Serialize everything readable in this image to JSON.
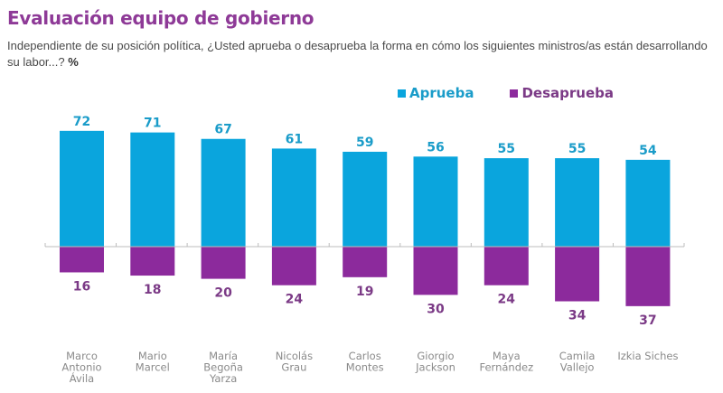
{
  "header": {
    "title": "Evaluación equipo de gobierno",
    "subtitle": "Independiente de su posición política, ¿Usted aprueba o desaprueba la forma en cómo los siguientes ministros/as están desarrollando su labor...?",
    "subtitle_unit": "%"
  },
  "colors": {
    "aprueba": "#0aa5dd",
    "desaprueba": "#8c2a9c",
    "aprueba_label": "#1a9cc9",
    "desaprueba_label": "#7b3a86",
    "title": "#8e3a97"
  },
  "chart_data": {
    "type": "bar",
    "title": "Evaluación equipo de gobierno",
    "xlabel": "",
    "ylabel": "%",
    "categories": [
      [
        "Marco",
        "Antonio",
        "Ávila"
      ],
      [
        "Mario",
        "Marcel"
      ],
      [
        "María",
        "Begoña",
        "Yarza"
      ],
      [
        "Nicolás",
        "Grau"
      ],
      [
        "Carlos",
        "Montes"
      ],
      [
        "Giorgio",
        "Jackson"
      ],
      [
        "Maya",
        "Fernández"
      ],
      [
        "Camila",
        "Vallejo"
      ],
      [
        "Izkia Siches"
      ]
    ],
    "series": [
      {
        "name": "Aprueba",
        "direction": "up",
        "values": [
          72,
          71,
          67,
          61,
          59,
          56,
          55,
          55,
          54
        ]
      },
      {
        "name": "Desaprueba",
        "direction": "down",
        "values": [
          16,
          18,
          20,
          24,
          19,
          30,
          24,
          34,
          37
        ]
      }
    ],
    "legend": {
      "position": "top-right",
      "entries": [
        "Aprueba",
        "Desaprueba"
      ]
    },
    "grid": false,
    "ylim": [
      -40,
      75
    ]
  }
}
